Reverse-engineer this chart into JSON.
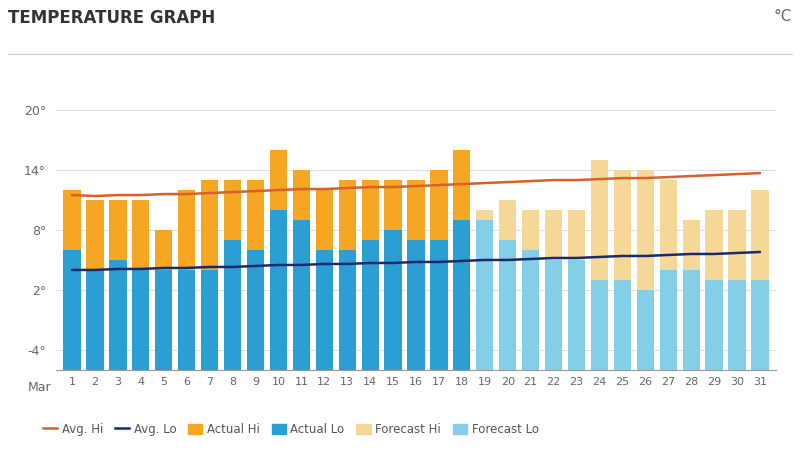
{
  "title": "TEMPERATURE GRAPH",
  "unit_label": "°C",
  "days": [
    1,
    2,
    3,
    4,
    5,
    6,
    7,
    8,
    9,
    10,
    11,
    12,
    13,
    14,
    15,
    16,
    17,
    18,
    19,
    20,
    21,
    22,
    23,
    24,
    25,
    26,
    27,
    28,
    29,
    30,
    31
  ],
  "actual_hi": [
    12,
    11,
    11,
    11,
    8,
    12,
    13,
    13,
    13,
    16,
    14,
    12,
    13,
    13,
    13,
    13,
    14,
    16,
    null,
    null,
    null,
    null,
    null,
    null,
    null,
    null,
    null,
    null,
    null,
    null,
    null
  ],
  "actual_lo": [
    6,
    4,
    5,
    4,
    4,
    4,
    4,
    7,
    6,
    10,
    9,
    6,
    6,
    7,
    8,
    7,
    7,
    9,
    null,
    null,
    null,
    null,
    null,
    null,
    null,
    null,
    null,
    null,
    null,
    null,
    null
  ],
  "forecast_hi": [
    null,
    null,
    null,
    null,
    null,
    null,
    null,
    null,
    null,
    null,
    null,
    null,
    null,
    null,
    null,
    null,
    null,
    null,
    10,
    11,
    10,
    10,
    10,
    15,
    14,
    14,
    13,
    9,
    10,
    10,
    12
  ],
  "forecast_lo": [
    null,
    null,
    null,
    null,
    null,
    null,
    null,
    null,
    null,
    null,
    null,
    null,
    null,
    null,
    null,
    null,
    null,
    null,
    9,
    7,
    6,
    5,
    5,
    3,
    3,
    2,
    4,
    4,
    3,
    3,
    3
  ],
  "avg_hi": [
    11.5,
    11.4,
    11.5,
    11.5,
    11.6,
    11.6,
    11.7,
    11.8,
    11.9,
    12.0,
    12.1,
    12.1,
    12.2,
    12.3,
    12.3,
    12.4,
    12.5,
    12.6,
    12.7,
    12.8,
    12.9,
    13.0,
    13.0,
    13.1,
    13.2,
    13.2,
    13.3,
    13.4,
    13.5,
    13.6,
    13.7
  ],
  "avg_lo": [
    4.0,
    4.0,
    4.1,
    4.1,
    4.2,
    4.2,
    4.3,
    4.3,
    4.4,
    4.5,
    4.5,
    4.6,
    4.6,
    4.7,
    4.7,
    4.8,
    4.8,
    4.9,
    5.0,
    5.0,
    5.1,
    5.2,
    5.2,
    5.3,
    5.4,
    5.4,
    5.5,
    5.6,
    5.6,
    5.7,
    5.8
  ],
  "ylim": [
    -6,
    22
  ],
  "yticks": [
    -4,
    2,
    8,
    14,
    20
  ],
  "ytick_labels": [
    "-4°",
    "2°",
    "8°",
    "14°",
    "20°"
  ],
  "color_actual_hi": "#F5A623",
  "color_actual_lo": "#2B9ED4",
  "color_forecast_hi": "#F5D897",
  "color_forecast_lo": "#85CEE8",
  "color_avg_hi": "#D4622A",
  "color_avg_lo": "#1B2A6B",
  "background_color": "#FFFFFF",
  "plot_bg_color": "#FFFFFF",
  "grid_color": "#DDDDDD",
  "legend_labels": [
    "Avg. Hi",
    "Avg. Lo",
    "Actual Hi",
    "Actual Lo",
    "Forecast Hi",
    "Forecast Lo"
  ]
}
